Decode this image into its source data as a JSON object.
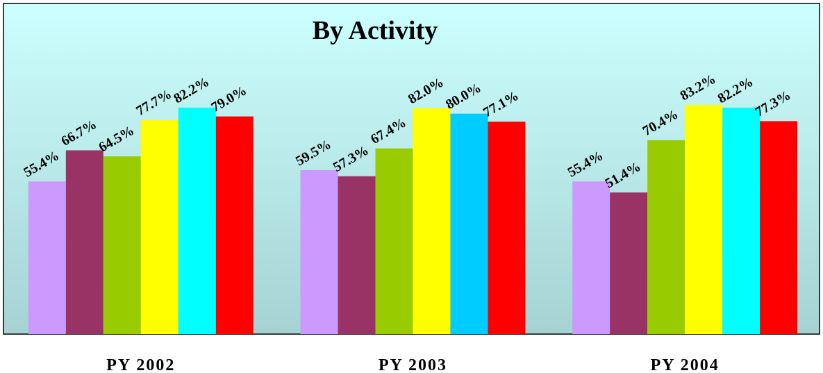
{
  "chart_data": {
    "type": "bar",
    "title": "By Activity",
    "categories": [
      "PY 2002",
      "PY 2003",
      "PY 2004"
    ],
    "ylim": [
      0,
      120
    ],
    "series": [
      {
        "color": "#cc99ff",
        "values": [
          55.4,
          59.5,
          55.4
        ],
        "value_labels": [
          "55.4%",
          "59.5%",
          "55.4%"
        ]
      },
      {
        "color": "#993366",
        "values": [
          66.7,
          57.3,
          51.4
        ],
        "value_labels": [
          "66.7%",
          "57.3%",
          "51.4%"
        ]
      },
      {
        "color": "#99cc00",
        "values": [
          64.5,
          67.4,
          70.4
        ],
        "value_labels": [
          "64.5%",
          "67.4%",
          "70.4%"
        ]
      },
      {
        "color": "#ffff00",
        "values": [
          77.7,
          82,
          83.2
        ],
        "value_labels": [
          "77.7%",
          "82.0%",
          "83.2%"
        ]
      },
      {
        "color": "#00ffff",
        "colors": [
          "#00ffff",
          "#00ccff",
          "#00ffff"
        ],
        "values": [
          82.2,
          80,
          82.2
        ],
        "value_labels": [
          "82.2%",
          "80.0%",
          "82.2%"
        ]
      },
      {
        "color": "#ff0000",
        "values": [
          79,
          77.1,
          77.3
        ],
        "value_labels": [
          "79.0%",
          "77.1%",
          "77.3%"
        ]
      }
    ]
  }
}
